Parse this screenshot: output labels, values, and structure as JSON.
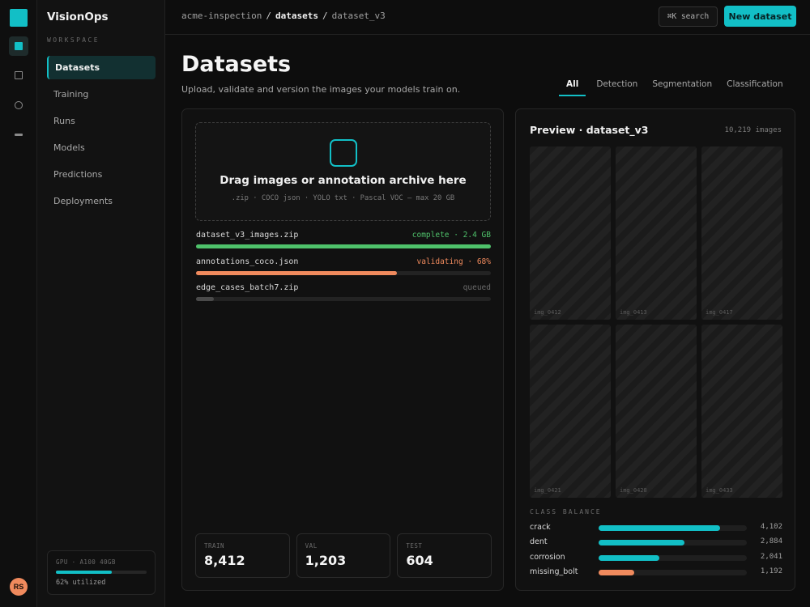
{
  "app": {
    "name": "VisionOps",
    "user_initials": "RS"
  },
  "colors": {
    "accent": "#12bfc6",
    "success": "#4fc26b",
    "warning": "#f08a5d",
    "muted": "#4a4a4a"
  },
  "rail": {
    "icons": [
      "datasets-icon",
      "square-icon",
      "circle-icon",
      "dash-icon"
    ]
  },
  "sidebar": {
    "section_label": "WORKSPACE",
    "items": [
      {
        "label": "Datasets",
        "active": true
      },
      {
        "label": "Training",
        "active": false
      },
      {
        "label": "Runs",
        "active": false
      },
      {
        "label": "Models",
        "active": false
      },
      {
        "label": "Predictions",
        "active": false
      },
      {
        "label": "Deployments",
        "active": false
      }
    ],
    "gpu": {
      "label": "GPU · A100 40GB",
      "utilization": 0.62,
      "utilization_text": "62% utilized"
    }
  },
  "topbar": {
    "breadcrumb": [
      "acme-inspection",
      "datasets",
      "dataset_v3"
    ],
    "search_label": "⌘K search",
    "new_button": "New dataset"
  },
  "page": {
    "title": "Datasets",
    "subtitle": "Upload, validate and version the images your models train on.",
    "tabs": [
      "All",
      "Detection",
      "Segmentation",
      "Classification"
    ],
    "active_tab": "All"
  },
  "upload": {
    "title": "Drag images or annotation archive here",
    "subtitle": ".zip · COCO json · YOLO txt · Pascal VOC — max 20 GB",
    "files": [
      {
        "name": "dataset_v3_images.zip",
        "status": "complete · 2.4 GB",
        "progress": 1.0,
        "state": "success"
      },
      {
        "name": "annotations_coco.json",
        "status": "validating · 68%",
        "progress": 0.68,
        "state": "warning"
      },
      {
        "name": "edge_cases_batch7.zip",
        "status": "queued",
        "progress": 0.06,
        "state": "muted"
      }
    ],
    "splits": [
      {
        "label": "TRAIN",
        "value": "8,412"
      },
      {
        "label": "VAL",
        "value": "1,203"
      },
      {
        "label": "TEST",
        "value": "604"
      }
    ]
  },
  "preview": {
    "title": "Preview · dataset_v3",
    "count": "10,219 images",
    "images": [
      "img_0412",
      "img_0413",
      "img_0417",
      "img_0421",
      "img_0428",
      "img_0433"
    ],
    "class_balance_label": "CLASS BALANCE",
    "classes": [
      {
        "name": "crack",
        "count": "4,102",
        "value": 4102,
        "color": "#12bfc6"
      },
      {
        "name": "dent",
        "count": "2,884",
        "value": 2884,
        "color": "#12bfc6"
      },
      {
        "name": "corrosion",
        "count": "2,041",
        "value": 2041,
        "color": "#12bfc6"
      },
      {
        "name": "missing_bolt",
        "count": "1,192",
        "value": 1192,
        "color": "#f08a5d"
      }
    ],
    "class_scale_max": 5000
  }
}
